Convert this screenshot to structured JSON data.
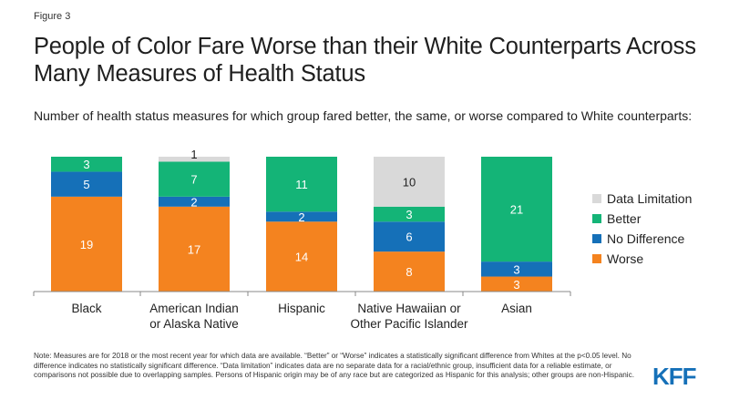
{
  "figure_label": "Figure 3",
  "title": "People of Color Fare Worse than their White Counterparts Across Many Measures of Health Status",
  "subtitle": "Number of health status measures for which group fared better, the same, or worse compared to White counterparts:",
  "note": "Note: Measures are for 2018 or the most recent year for which data are available. “Better” or “Worse” indicates a statistically significant difference from Whites at the p<0.05 level. No difference indicates no statistically significant difference. “Data limitation” indicates data are no separate data for a racial/ethnic group, insufficient data for a reliable estimate, or comparisons not possible due to overlapping samples. Persons of Hispanic origin may be of any race but are categorized as Hispanic for this analysis; other groups are non-Hispanic.",
  "logo_text": "KFF",
  "colors": {
    "worse": "#f4831f",
    "no_difference": "#1570b8",
    "better": "#14b477",
    "data_limitation": "#d9d9d9",
    "logo": "#1570b8"
  },
  "chart_data": {
    "type": "bar",
    "stacked": true,
    "categories": [
      [
        "Black"
      ],
      [
        "American Indian",
        "or Alaska Native"
      ],
      [
        "Hispanic"
      ],
      [
        "Native Hawaiian or",
        "Other Pacific Islander"
      ],
      [
        "Asian"
      ]
    ],
    "series": [
      {
        "name": "Worse",
        "color": "#f4831f",
        "values": [
          19,
          17,
          14,
          8,
          3
        ]
      },
      {
        "name": "No Difference",
        "color": "#1570b8",
        "values": [
          5,
          2,
          2,
          6,
          3
        ]
      },
      {
        "name": "Better",
        "color": "#14b477",
        "values": [
          3,
          7,
          11,
          3,
          21
        ]
      },
      {
        "name": "Data Limitation",
        "color": "#d9d9d9",
        "values": [
          0,
          1,
          0,
          10,
          0
        ]
      }
    ],
    "legend_order": [
      "Data Limitation",
      "Better",
      "No Difference",
      "Worse"
    ],
    "legend_position": "right",
    "ylim": [
      0,
      27
    ],
    "grid": false
  }
}
